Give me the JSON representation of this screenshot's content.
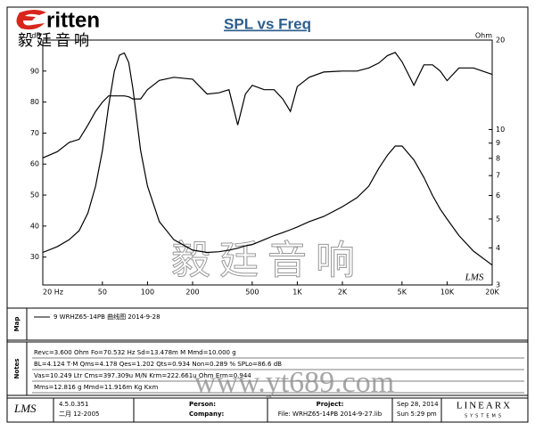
{
  "header": {
    "logo": "ritten",
    "logo_cn": "毅廷音响"
  },
  "chart_data": {
    "type": "line",
    "title": "SPL vs Freq",
    "ylabel": "dB",
    "y2label": "Ohm",
    "xscale": "log",
    "y2scale": "log",
    "x": [
      20,
      25,
      30,
      35,
      40,
      45,
      50,
      55,
      60,
      65,
      70,
      75,
      80,
      90,
      100,
      120,
      150,
      200,
      250,
      300,
      350,
      400,
      450,
      500,
      600,
      700,
      800,
      900,
      1000,
      1200,
      1500,
      2000,
      2500,
      3000,
      3500,
      4000,
      4500,
      5000,
      6000,
      7000,
      8000,
      9000,
      10000,
      12000,
      15000,
      20000
    ],
    "series": [
      {
        "color": "#000000",
        "values": [
          62,
          64,
          67,
          68,
          72.6,
          77,
          80,
          82,
          82,
          82,
          82,
          81.7,
          81,
          81,
          84,
          87,
          88,
          87.4,
          82.6,
          83,
          84,
          72.6,
          82.6,
          85.4,
          84,
          84,
          81,
          77,
          85,
          88,
          89.7,
          90,
          90,
          91,
          92.6,
          95,
          96,
          93,
          85.4,
          92,
          92,
          90,
          86.9,
          91,
          91,
          88.9
        ]
      },
      {
        "color": "#000000",
        "axis": "y2",
        "values": [
          3.86,
          4.04,
          4.26,
          4.57,
          5.24,
          6.45,
          8.5,
          12,
          15.7,
          17.8,
          18.1,
          16.8,
          13.7,
          8.5,
          6.45,
          4.9,
          4.26,
          3.93,
          3.86,
          3.88,
          3.93,
          3.99,
          4.06,
          4.1,
          4.26,
          4.4,
          4.5,
          4.6,
          4.7,
          4.9,
          5.1,
          5.5,
          5.9,
          6.45,
          7.4,
          8.2,
          8.8,
          8.8,
          7.9,
          6.9,
          6.0,
          5.4,
          5.0,
          4.4,
          3.9,
          3.5
        ]
      }
    ],
    "xlim": [
      20,
      20000
    ],
    "xticks": [
      {
        "value": 20,
        "label": "20 Hz"
      },
      50,
      100,
      200,
      500,
      {
        "value": 1000,
        "label": "1K"
      },
      {
        "value": 2000,
        "label": "2K"
      },
      {
        "value": 5000,
        "label": "5K"
      },
      {
        "value": 10000,
        "label": "10K"
      },
      {
        "value": 20000,
        "label": "20K"
      }
    ],
    "ylim": [
      21,
      100
    ],
    "yticks": [
      30,
      40,
      50,
      60,
      70,
      80,
      90
    ],
    "y2lim": [
      3,
      20
    ],
    "y2ticks": [
      3,
      4,
      5,
      6,
      7,
      8,
      9,
      10,
      20
    ],
    "grid": false,
    "plot_logo": "LMS",
    "watermark": "毅廷音响"
  },
  "map": {
    "label": "Map",
    "entry": "9  WRHZ65-14PB  曲线图  2014-9-28"
  },
  "notes": {
    "label": "Notes",
    "lines": [
      "Revc=3.600 Ohm  Fo=70.532 Hz  Sd=13.478m M  Mmd=10.000 g",
      "BL=4.124 T·M  Qms=4.178  Qes=1.202  Qts=0.934  Non=0.289 %  SPLo=86.6 dB",
      "Vas=10.249 Ltr  Cms=397.309u M/N  Krm=222.661u Ohm  Erm=0.944",
      "Mms=12.816 g  Mmd=11.916m Kg  Kxm"
    ]
  },
  "footer": {
    "logo": "LMS",
    "version": "4.5.0.351",
    "date": "二月 12-2005",
    "person": "Person:",
    "company": "Company:",
    "project": "Project:",
    "file": "File: WRHZ65-14PB  2014-9-27.lib",
    "day": "Sep 28, 2014",
    "time": "Sun  5:29 pm",
    "brand": "LINEARX",
    "brand_sub": "SYSTEMS"
  },
  "watermark": "www.yt689.com"
}
